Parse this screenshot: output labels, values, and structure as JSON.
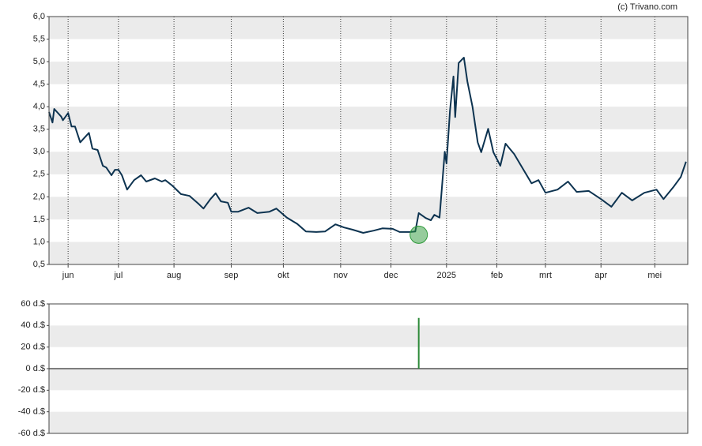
{
  "credit": "(c) Trivano.com",
  "chart_data": [
    {
      "type": "line",
      "x": [
        0,
        2,
        3,
        7,
        8,
        11,
        13,
        15,
        18,
        23,
        25,
        28,
        31,
        33,
        36,
        38,
        40,
        42,
        45,
        49,
        53,
        56,
        61,
        65,
        67,
        71,
        76,
        81,
        86,
        89,
        93,
        96,
        99,
        103,
        105,
        109,
        115,
        120,
        127,
        131,
        137,
        143,
        148,
        154,
        159,
        165,
        170,
        175,
        181,
        187,
        192,
        198,
        202,
        208,
        211,
        213,
        217,
        220,
        222,
        225,
        228,
        229,
        231,
        233,
        234,
        236,
        238,
        239,
        241,
        244,
        247,
        249,
        251,
        253,
        256,
        260,
        263,
        268,
        272,
        278,
        282,
        286,
        293,
        299,
        304,
        311,
        318,
        324,
        330,
        336,
        343,
        350,
        354,
        360,
        364,
        367
      ],
      "values": [
        3.88,
        3.65,
        3.95,
        3.78,
        3.7,
        3.86,
        3.56,
        3.56,
        3.21,
        3.42,
        3.07,
        3.04,
        2.69,
        2.65,
        2.48,
        2.6,
        2.6,
        2.48,
        2.16,
        2.37,
        2.48,
        2.34,
        2.41,
        2.34,
        2.37,
        2.25,
        2.06,
        2.02,
        1.85,
        1.74,
        1.95,
        2.08,
        1.9,
        1.87,
        1.67,
        1.67,
        1.76,
        1.64,
        1.67,
        1.74,
        1.54,
        1.4,
        1.23,
        1.22,
        1.23,
        1.39,
        1.32,
        1.27,
        1.2,
        1.25,
        1.3,
        1.29,
        1.22,
        1.22,
        1.23,
        1.64,
        1.53,
        1.48,
        1.6,
        1.54,
        3.0,
        2.74,
        3.91,
        4.67,
        3.77,
        4.97,
        5.05,
        5.09,
        4.56,
        4.0,
        3.21,
        2.99,
        3.25,
        3.51,
        2.99,
        2.69,
        3.18,
        2.95,
        2.69,
        2.3,
        2.37,
        2.09,
        2.16,
        2.34,
        2.11,
        2.13,
        1.95,
        1.78,
        2.09,
        1.92,
        2.09,
        2.16,
        1.95,
        2.23,
        2.44,
        2.78
      ],
      "color": "#0d3350",
      "marker": {
        "x": 213,
        "y": 1.16,
        "color": "#2e9a3a"
      },
      "xlim": [
        0,
        368
      ],
      "xticks": [
        {
          "value": 11,
          "label": "jun"
        },
        {
          "value": 40,
          "label": "jul"
        },
        {
          "value": 72,
          "label": "aug"
        },
        {
          "value": 105,
          "label": "sep"
        },
        {
          "value": 135,
          "label": "okt"
        },
        {
          "value": 168,
          "label": "nov"
        },
        {
          "value": 197,
          "label": "dec"
        },
        {
          "value": 229,
          "label": "2025"
        },
        {
          "value": 258,
          "label": "feb"
        },
        {
          "value": 286,
          "label": "mrt"
        },
        {
          "value": 318,
          "label": "apr"
        },
        {
          "value": 349,
          "label": "mei"
        }
      ],
      "ylim": [
        0.5,
        6
      ],
      "yticks": [
        {
          "value": 0.5,
          "label": "0,5"
        },
        {
          "value": 1,
          "label": "1,0"
        },
        {
          "value": 1.5,
          "label": "1,5"
        },
        {
          "value": 2,
          "label": "2,0"
        },
        {
          "value": 2.5,
          "label": "2,5"
        },
        {
          "value": 3,
          "label": "3,0"
        },
        {
          "value": 3.5,
          "label": "3,5"
        },
        {
          "value": 4,
          "label": "4,0"
        },
        {
          "value": 4.5,
          "label": "4,5"
        },
        {
          "value": 5,
          "label": "5,0"
        },
        {
          "value": 5.5,
          "label": "5,5"
        },
        {
          "value": 6,
          "label": "6,0"
        }
      ],
      "grid": "bands"
    },
    {
      "type": "bar",
      "x": [
        213
      ],
      "values": [
        47
      ],
      "color": "#2e8b3a",
      "xlim": [
        0,
        368
      ],
      "ylim": [
        -60,
        60
      ],
      "yticks": [
        {
          "value": -60,
          "label": "-60 d.$"
        },
        {
          "value": -40,
          "label": "-40 d.$"
        },
        {
          "value": -20,
          "label": "-20 d.$"
        },
        {
          "value": 0,
          "label": "0 d.$"
        },
        {
          "value": 20,
          "label": "20 d.$"
        },
        {
          "value": 40,
          "label": "40 d.$"
        },
        {
          "value": 60,
          "label": "60 d.$"
        }
      ],
      "grid": "bands"
    }
  ]
}
